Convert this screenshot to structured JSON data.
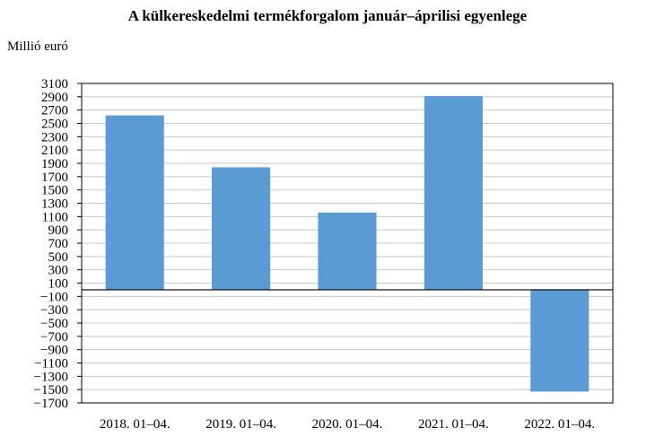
{
  "chart_data": {
    "type": "bar",
    "title": "A külkereskedelmi termékforgalom január–áprilisi egyenlege",
    "ylabel": "Millió euró",
    "xlabel": "",
    "categories": [
      "2018. 01–04.",
      "2019. 01–04.",
      "2020. 01–04.",
      "2021. 01–04.",
      "2022. 01–04."
    ],
    "values": [
      2620,
      1840,
      1160,
      2910,
      -1530
    ],
    "ylim": [
      -1700,
      3100
    ],
    "yticks": [
      3100,
      2900,
      2700,
      2500,
      2300,
      2100,
      1900,
      1700,
      1500,
      1300,
      1100,
      900,
      700,
      500,
      300,
      100,
      -100,
      -300,
      -500,
      -700,
      -900,
      -1100,
      -1300,
      -1500,
      -1700
    ],
    "grid": true,
    "legend": "none",
    "bar_color": "#5b9bd5"
  }
}
